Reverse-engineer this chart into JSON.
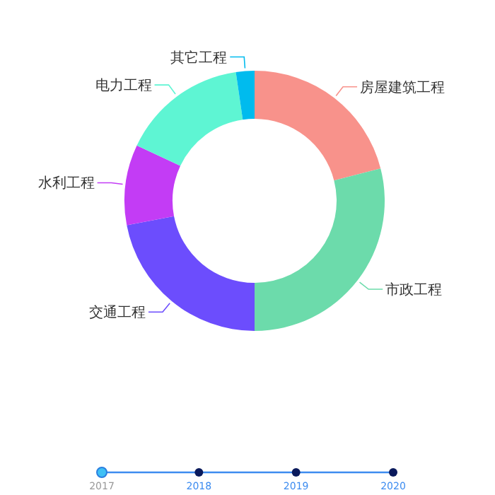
{
  "chart_data": {
    "type": "donut",
    "categories": [
      "房屋建筑工程",
      "市政工程",
      "交通工程",
      "水利工程",
      "电力工程",
      "其它工程"
    ],
    "values": [
      21,
      29,
      22,
      10,
      15.7,
      2.3
    ],
    "colors": [
      "#f8928b",
      "#6cdbab",
      "#6c4dfd",
      "#c33cf5",
      "#5ef5d3",
      "#00bbee"
    ],
    "annotations": [
      "2017",
      "2018",
      "2019",
      "2020"
    ]
  }
}
